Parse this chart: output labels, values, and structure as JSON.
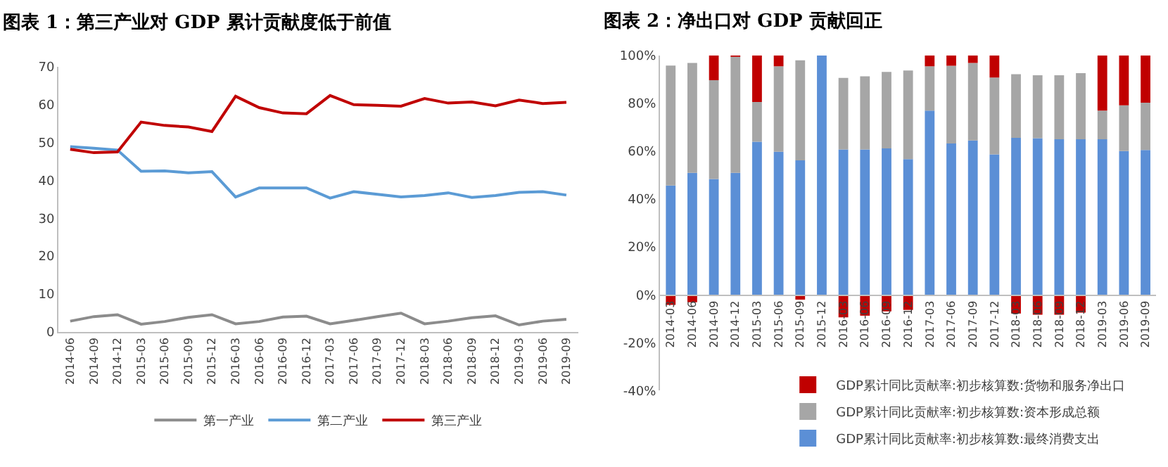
{
  "chart_data": [
    {
      "type": "line",
      "title": "图表 1：第三产业对 GDP 累计贡献度低于前值",
      "categories": [
        "2014-06",
        "2014-09",
        "2014-12",
        "2015-03",
        "2015-06",
        "2015-09",
        "2015-12",
        "2016-03",
        "2016-06",
        "2016-09",
        "2016-12",
        "2017-03",
        "2017-06",
        "2017-09",
        "2017-12",
        "2018-03",
        "2018-06",
        "2018-09",
        "2018-12",
        "2019-03",
        "2019-06",
        "2019-09"
      ],
      "series": [
        {
          "name": "第一产业",
          "color": "#8c8c8c",
          "values": [
            2.8,
            4.0,
            4.5,
            2.0,
            2.7,
            3.8,
            4.5,
            2.1,
            2.7,
            3.9,
            4.1,
            2.1,
            3.0,
            4.0,
            4.9,
            2.1,
            2.8,
            3.7,
            4.2,
            1.8,
            2.8,
            3.3
          ]
        },
        {
          "name": "第二产业",
          "color": "#5b9bd5",
          "values": [
            48.9,
            48.5,
            48.0,
            42.4,
            42.5,
            42.0,
            42.3,
            35.6,
            38.0,
            38.0,
            38.0,
            35.3,
            37.0,
            36.3,
            35.6,
            36.0,
            36.7,
            35.5,
            36.0,
            36.8,
            37.0,
            36.1
          ]
        },
        {
          "name": "第三产业",
          "color": "#c00000",
          "values": [
            48.2,
            47.3,
            47.5,
            55.4,
            54.5,
            54.1,
            52.9,
            62.2,
            59.2,
            57.8,
            57.6,
            62.4,
            60.0,
            59.8,
            59.6,
            61.6,
            60.4,
            60.7,
            59.7,
            61.2,
            60.3,
            60.6
          ]
        }
      ],
      "ylim": [
        0,
        70
      ],
      "yticks": [
        0,
        10,
        20,
        30,
        40,
        50,
        60,
        70
      ],
      "legend": "bottom"
    },
    {
      "type": "bar",
      "title": "图表 2：净出口对 GDP 贡献回正",
      "stacked": true,
      "categories": [
        "2014-03",
        "2014-06",
        "2014-09",
        "2014-12",
        "2015-03",
        "2015-06",
        "2015-09",
        "2015-12",
        "2016-03",
        "2016-06",
        "2016-09",
        "2016-12",
        "2017-03",
        "2017-06",
        "2017-09",
        "2017-12",
        "2018-03",
        "2018-06",
        "2018-09",
        "2018-12",
        "2019-03",
        "2019-06",
        "2019-09"
      ],
      "series": [
        {
          "name": "GDP累计同比贡献率:初步核算数:最终消费支出",
          "color": "#5b8fd6",
          "values": [
            45.7,
            51.0,
            48.4,
            51.0,
            64.0,
            59.8,
            56.2,
            100,
            60.7,
            60.7,
            61.2,
            56.7,
            77.0,
            63.2,
            64.5,
            58.7,
            65.6,
            65.4,
            65.0,
            65.0,
            65.0,
            60.1,
            60.5
          ]
        },
        {
          "name": "GDP累计同比贡献率:初步核算数:资本形成总额",
          "color": "#a6a6a6",
          "values": [
            50.1,
            45.9,
            41.3,
            48.5,
            16.6,
            35.7,
            41.8,
            0,
            29.9,
            30.6,
            31.9,
            37.0,
            18.5,
            32.5,
            32.4,
            32.1,
            26.6,
            26.3,
            26.7,
            27.6,
            12.0,
            19.1,
            19.8
          ]
        },
        {
          "name": "GDP累计同比贡献率:初步核算数:货物和服务净出口",
          "color": "#c00000",
          "values": [
            -4.2,
            -3.1,
            10.3,
            0.5,
            19.4,
            4.5,
            -2.0,
            0,
            -9.4,
            -8.7,
            -6.9,
            -6.3,
            4.5,
            4.3,
            3.1,
            9.2,
            -7.8,
            -8.3,
            -8.3,
            -7.4,
            23.0,
            20.8,
            19.7
          ]
        }
      ],
      "ylim": [
        -40,
        100
      ],
      "yticks": [
        {
          "value": -40,
          "label": "-40%"
        },
        {
          "value": -20,
          "label": "-20%"
        },
        {
          "value": 0,
          "label": "0%"
        },
        {
          "value": 20,
          "label": "20%"
        },
        {
          "value": 40,
          "label": "40%"
        },
        {
          "value": 60,
          "label": "60%"
        },
        {
          "value": 80,
          "label": "80%"
        },
        {
          "value": 100,
          "label": "100%"
        }
      ],
      "legend": "bottom right"
    }
  ]
}
